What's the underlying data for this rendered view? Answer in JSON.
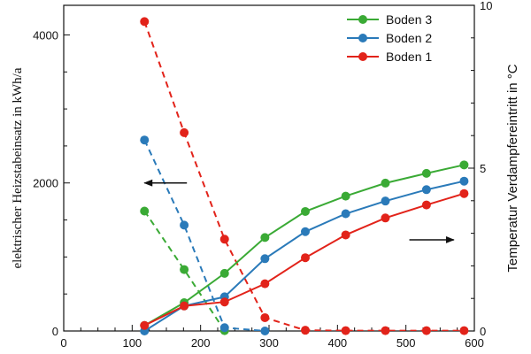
{
  "chart_data": {
    "type": "line",
    "xlabel": "",
    "ylabel": "elektrischer Heizstabeinsatz in kWh/a",
    "y2label": "Temperatur Verdampfereintritt in °C",
    "xlim": [
      0,
      600
    ],
    "ylim": [
      0,
      4400
    ],
    "y2lim": [
      0,
      10
    ],
    "x_ticks": [
      "0",
      "100",
      "200",
      "300",
      "400",
      "500",
      "600"
    ],
    "y_ticks": [
      "0",
      "2000",
      "4000"
    ],
    "y2_ticks": [
      "0",
      "5",
      "10"
    ],
    "colors": {
      "Boden 3": "#3aaa35",
      "Boden 2": "#2a7ab9",
      "Boden 1": "#e2231a"
    },
    "legend": {
      "position": "top-right",
      "entries": [
        "Boden 3",
        "Boden 2",
        "Boden 1"
      ]
    },
    "series": [
      {
        "name": "Boden 3",
        "style": "dashed",
        "axis": "left",
        "x": [
          118,
          176,
          235
        ],
        "y": [
          1620,
          830,
          5
        ]
      },
      {
        "name": "Boden 2",
        "style": "dashed",
        "axis": "left",
        "x": [
          118,
          176,
          235,
          294
        ],
        "y": [
          2580,
          1430,
          45,
          0
        ]
      },
      {
        "name": "Boden 1",
        "style": "dashed",
        "axis": "left",
        "x": [
          118,
          176,
          235,
          294,
          353,
          412,
          470,
          530,
          585
        ],
        "y": [
          4180,
          2680,
          1240,
          180,
          10,
          5,
          5,
          5,
          5
        ]
      },
      {
        "name": "Boden 3",
        "style": "solid",
        "axis": "right",
        "x": [
          118,
          176,
          235,
          294,
          353,
          412,
          470,
          530,
          585
        ],
        "y": [
          0.17,
          0.87,
          1.77,
          2.87,
          3.67,
          4.14,
          4.54,
          4.84,
          5.1
        ]
      },
      {
        "name": "Boden 2",
        "style": "solid",
        "axis": "right",
        "x": [
          118,
          176,
          235,
          294,
          353,
          412,
          470,
          530,
          585
        ],
        "y": [
          0.0,
          0.77,
          1.05,
          2.22,
          3.05,
          3.6,
          3.99,
          4.34,
          4.6
        ]
      },
      {
        "name": "Boden 1",
        "style": "solid",
        "axis": "right",
        "x": [
          118,
          176,
          235,
          294,
          353,
          412,
          470,
          530,
          585
        ],
        "y": [
          0.17,
          0.77,
          0.89,
          1.45,
          2.25,
          2.95,
          3.47,
          3.87,
          4.22
        ]
      }
    ],
    "annotations": [
      {
        "type": "arrow",
        "direction": "left",
        "x_from": 180,
        "x_to": 118,
        "y": 2000,
        "axis": "left",
        "note": ""
      },
      {
        "type": "arrow",
        "direction": "right",
        "x_from": 505,
        "x_to": 570,
        "y": 2.8,
        "axis": "right",
        "note": ""
      }
    ]
  }
}
